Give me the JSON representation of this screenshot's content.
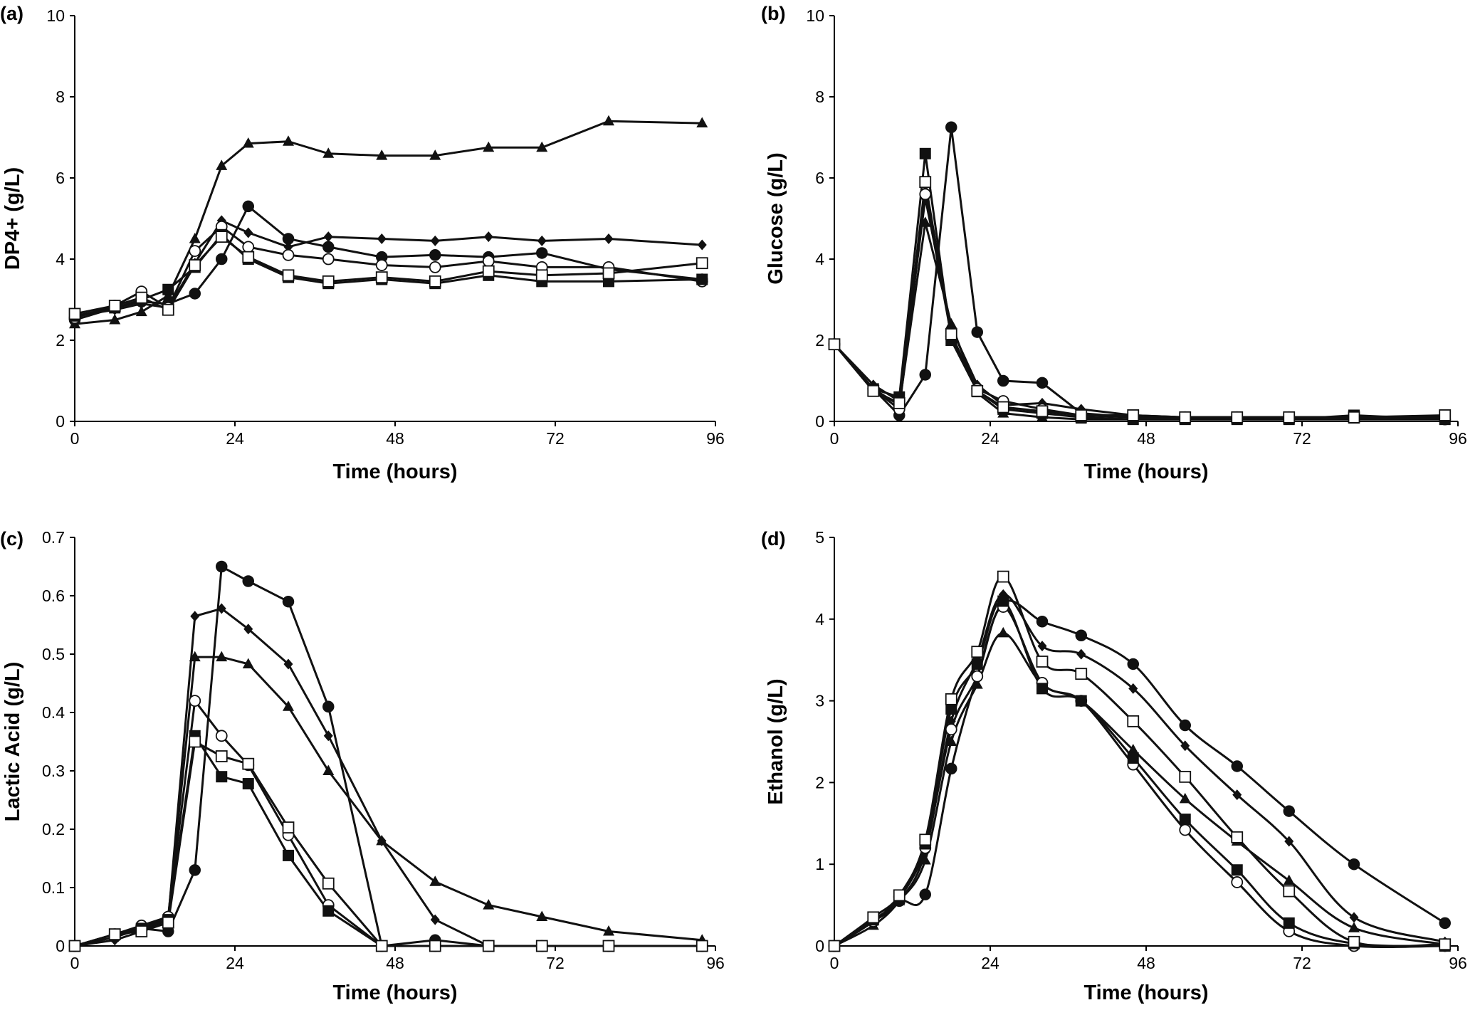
{
  "chart_data": [
    {
      "panel": "(a)",
      "type": "line",
      "xlabel": "Time (hours)",
      "ylabel": "DP4+ (g/L)",
      "xlim": [
        0,
        96
      ],
      "ylim": [
        0,
        10
      ],
      "xticks": [
        0,
        24,
        48,
        72,
        96
      ],
      "yticks": [
        0,
        2,
        4,
        6,
        8,
        10
      ],
      "smooth": false,
      "series": [
        {
          "marker": "circle-filled",
          "x": [
            0,
            6,
            10,
            14,
            18,
            22,
            26,
            32,
            38,
            46,
            54,
            62,
            70,
            80,
            94
          ],
          "y": [
            2.5,
            2.8,
            2.95,
            2.9,
            3.15,
            4.0,
            5.3,
            4.5,
            4.3,
            4.05,
            4.1,
            4.05,
            4.15,
            3.75,
            3.5
          ]
        },
        {
          "marker": "diamond-filled",
          "x": [
            0,
            6,
            10,
            14,
            18,
            22,
            26,
            32,
            38,
            46,
            54,
            62,
            70,
            80,
            94
          ],
          "y": [
            2.6,
            2.75,
            2.9,
            2.8,
            3.9,
            4.95,
            4.65,
            4.3,
            4.55,
            4.5,
            4.45,
            4.55,
            4.45,
            4.5,
            4.35
          ]
        },
        {
          "marker": "triangle-filled",
          "x": [
            0,
            6,
            10,
            14,
            18,
            22,
            26,
            32,
            38,
            46,
            54,
            62,
            70,
            80,
            94
          ],
          "y": [
            2.4,
            2.5,
            2.7,
            3.1,
            4.5,
            6.3,
            6.85,
            6.9,
            6.6,
            6.55,
            6.55,
            6.75,
            6.75,
            7.4,
            7.35
          ]
        },
        {
          "marker": "circle-open",
          "x": [
            0,
            6,
            10,
            14,
            18,
            22,
            26,
            32,
            38,
            46,
            54,
            62,
            70,
            80,
            94
          ],
          "y": [
            2.55,
            2.85,
            3.2,
            2.8,
            4.2,
            4.8,
            4.3,
            4.1,
            4.0,
            3.85,
            3.8,
            3.95,
            3.8,
            3.8,
            3.45
          ]
        },
        {
          "marker": "square-filled",
          "x": [
            0,
            6,
            10,
            14,
            18,
            22,
            26,
            32,
            38,
            46,
            54,
            62,
            70,
            80,
            94
          ],
          "y": [
            2.6,
            2.8,
            3.0,
            3.25,
            3.8,
            4.6,
            4.0,
            3.55,
            3.4,
            3.5,
            3.4,
            3.6,
            3.45,
            3.45,
            3.5
          ]
        },
        {
          "marker": "square-open",
          "x": [
            0,
            6,
            10,
            14,
            18,
            22,
            26,
            32,
            38,
            46,
            54,
            62,
            70,
            80,
            94
          ],
          "y": [
            2.65,
            2.85,
            3.05,
            2.75,
            3.85,
            4.55,
            4.05,
            3.6,
            3.45,
            3.55,
            3.45,
            3.7,
            3.6,
            3.65,
            3.9
          ]
        }
      ]
    },
    {
      "panel": "(b)",
      "type": "line",
      "xlabel": "Time  (hours)",
      "ylabel": "Glucose  (g/L)",
      "xlim": [
        0,
        96
      ],
      "ylim": [
        0,
        10
      ],
      "xticks": [
        0,
        24,
        48,
        72,
        96
      ],
      "yticks": [
        0,
        2,
        4,
        6,
        8,
        10
      ],
      "smooth": false,
      "series": [
        {
          "marker": "circle-filled",
          "x": [
            0,
            6,
            10,
            14,
            18,
            22,
            26,
            32,
            38,
            46,
            54,
            62,
            70,
            80,
            94
          ],
          "y": [
            1.9,
            0.8,
            0.15,
            1.15,
            7.25,
            2.2,
            1.0,
            0.95,
            0.2,
            0.1,
            0.1,
            0.1,
            0.1,
            0.1,
            0.05
          ]
        },
        {
          "marker": "diamond-filled",
          "x": [
            0,
            6,
            10,
            14,
            18,
            22,
            26,
            32,
            38,
            46,
            54,
            62,
            70,
            80,
            94
          ],
          "y": [
            1.9,
            0.9,
            0.5,
            5.5,
            2.3,
            0.9,
            0.4,
            0.45,
            0.3,
            0.15,
            0.1,
            0.1,
            0.1,
            0.1,
            0.1
          ]
        },
        {
          "marker": "triangle-filled",
          "x": [
            0,
            6,
            10,
            14,
            18,
            22,
            26,
            32,
            38,
            46,
            54,
            62,
            70,
            80,
            94
          ],
          "y": [
            1.9,
            0.8,
            0.4,
            4.9,
            2.4,
            0.7,
            0.2,
            0.1,
            0.05,
            0.05,
            0.05,
            0.05,
            0.05,
            0.05,
            0.05
          ]
        },
        {
          "marker": "circle-open",
          "x": [
            0,
            6,
            10,
            14,
            18,
            22,
            26,
            32,
            38,
            46,
            54,
            62,
            70,
            80,
            94
          ],
          "y": [
            1.9,
            0.8,
            0.3,
            5.6,
            2.1,
            0.8,
            0.5,
            0.3,
            0.15,
            0.1,
            0.1,
            0.1,
            0.1,
            0.1,
            0.05
          ]
        },
        {
          "marker": "square-filled",
          "x": [
            0,
            6,
            10,
            14,
            18,
            22,
            26,
            32,
            38,
            46,
            54,
            62,
            70,
            80,
            94
          ],
          "y": [
            1.9,
            0.8,
            0.6,
            6.6,
            2.0,
            0.75,
            0.3,
            0.2,
            0.1,
            0.05,
            0.05,
            0.05,
            0.05,
            0.15,
            0.05
          ]
        },
        {
          "marker": "square-open",
          "x": [
            0,
            6,
            10,
            14,
            18,
            22,
            26,
            32,
            38,
            46,
            54,
            62,
            70,
            80,
            94
          ],
          "y": [
            1.9,
            0.75,
            0.45,
            5.9,
            2.15,
            0.75,
            0.35,
            0.25,
            0.15,
            0.15,
            0.1,
            0.1,
            0.1,
            0.1,
            0.15
          ]
        }
      ]
    },
    {
      "panel": "(c)",
      "type": "line",
      "xlabel": "Time (hours)",
      "ylabel": "Lactic Acid (g/L)",
      "xlim": [
        0,
        96
      ],
      "ylim": [
        0,
        0.7
      ],
      "xticks": [
        0,
        24,
        48,
        72,
        96
      ],
      "yticks": [
        0,
        0.1,
        0.2,
        0.3,
        0.4,
        0.5,
        0.6,
        0.7
      ],
      "smooth": false,
      "series": [
        {
          "marker": "circle-filled",
          "x": [
            0,
            6,
            10,
            14,
            18,
            22,
            26,
            32,
            38,
            46,
            54,
            62,
            70,
            80,
            94
          ],
          "y": [
            0,
            0.015,
            0.03,
            0.025,
            0.13,
            0.65,
            0.625,
            0.59,
            0.41,
            0,
            0.01,
            0,
            0,
            0,
            0
          ]
        },
        {
          "marker": "diamond-filled",
          "x": [
            0,
            6,
            10,
            14,
            18,
            22,
            26,
            32,
            38,
            46,
            54,
            62,
            70,
            80,
            94
          ],
          "y": [
            0,
            0.01,
            0.025,
            0.045,
            0.565,
            0.578,
            0.543,
            0.483,
            0.36,
            0.18,
            0.045,
            0,
            0,
            0,
            0
          ]
        },
        {
          "marker": "triangle-filled",
          "x": [
            0,
            6,
            10,
            14,
            18,
            22,
            26,
            32,
            38,
            46,
            54,
            62,
            70,
            80,
            94
          ],
          "y": [
            0,
            0.02,
            0.03,
            0.05,
            0.495,
            0.495,
            0.483,
            0.41,
            0.3,
            0.18,
            0.11,
            0.07,
            0.05,
            0.025,
            0.01
          ]
        },
        {
          "marker": "circle-open",
          "x": [
            0,
            6,
            10,
            14,
            18,
            22,
            26,
            32,
            38,
            46,
            54,
            62,
            70,
            80,
            94
          ],
          "y": [
            0,
            0.02,
            0.035,
            0.05,
            0.42,
            0.36,
            0.31,
            0.19,
            0.07,
            0,
            0,
            0,
            0,
            0,
            0
          ]
        },
        {
          "marker": "square-filled",
          "x": [
            0,
            6,
            10,
            14,
            18,
            22,
            26,
            32,
            38,
            46,
            54,
            62,
            70,
            80,
            94
          ],
          "y": [
            0,
            0.02,
            0.03,
            0.045,
            0.36,
            0.29,
            0.278,
            0.155,
            0.06,
            0,
            0,
            0,
            0,
            0,
            0
          ]
        },
        {
          "marker": "square-open",
          "x": [
            0,
            6,
            10,
            14,
            18,
            22,
            26,
            32,
            38,
            46,
            54,
            62,
            70,
            80,
            94
          ],
          "y": [
            0,
            0.02,
            0.025,
            0.04,
            0.35,
            0.325,
            0.312,
            0.203,
            0.107,
            0,
            0,
            0,
            0,
            0,
            0
          ]
        }
      ]
    },
    {
      "panel": "(d)",
      "type": "line",
      "xlabel": "Time (hours)",
      "ylabel": "Ethanol  (g/L)",
      "xlim": [
        0,
        96
      ],
      "ylim": [
        0,
        5
      ],
      "xticks": [
        0,
        24,
        48,
        72,
        96
      ],
      "yticks": [
        0,
        1,
        2,
        3,
        4,
        5
      ],
      "smooth": true,
      "series": [
        {
          "marker": "circle-filled",
          "x": [
            0,
            6,
            10,
            14,
            18,
            22,
            26,
            32,
            38,
            46,
            54,
            62,
            70,
            80,
            94
          ],
          "y": [
            0,
            0.3,
            0.55,
            0.63,
            2.17,
            3.3,
            4.2,
            3.97,
            3.8,
            3.45,
            2.7,
            2.2,
            1.65,
            1.0,
            0.28
          ]
        },
        {
          "marker": "diamond-filled",
          "x": [
            0,
            6,
            10,
            14,
            18,
            22,
            26,
            32,
            38,
            46,
            54,
            62,
            70,
            80,
            94
          ],
          "y": [
            0,
            0.3,
            0.55,
            1.15,
            2.75,
            3.5,
            4.3,
            3.67,
            3.57,
            3.15,
            2.45,
            1.85,
            1.28,
            0.35,
            0.05
          ]
        },
        {
          "marker": "triangle-filled",
          "x": [
            0,
            6,
            10,
            14,
            18,
            22,
            26,
            32,
            38,
            46,
            54,
            62,
            70,
            80,
            94
          ],
          "y": [
            0,
            0.25,
            0.55,
            1.05,
            2.5,
            3.2,
            3.83,
            3.2,
            3.0,
            2.4,
            1.8,
            1.28,
            0.8,
            0.22,
            0.02
          ]
        },
        {
          "marker": "circle-open",
          "x": [
            0,
            6,
            10,
            14,
            18,
            22,
            26,
            32,
            38,
            46,
            54,
            62,
            70,
            80,
            94
          ],
          "y": [
            0,
            0.3,
            0.6,
            1.2,
            2.65,
            3.3,
            4.15,
            3.22,
            3.0,
            2.22,
            1.42,
            0.78,
            0.18,
            0,
            0
          ]
        },
        {
          "marker": "square-filled",
          "x": [
            0,
            6,
            10,
            14,
            18,
            22,
            26,
            32,
            38,
            46,
            54,
            62,
            70,
            80,
            94
          ],
          "y": [
            0,
            0.32,
            0.58,
            1.25,
            2.9,
            3.45,
            4.22,
            3.15,
            3.0,
            2.3,
            1.55,
            0.93,
            0.28,
            0.03,
            0
          ]
        },
        {
          "marker": "square-open",
          "x": [
            0,
            6,
            10,
            14,
            18,
            22,
            26,
            32,
            38,
            46,
            54,
            62,
            70,
            80,
            94
          ],
          "y": [
            0,
            0.35,
            0.62,
            1.3,
            3.02,
            3.6,
            4.52,
            3.48,
            3.33,
            2.75,
            2.07,
            1.33,
            0.67,
            0.05,
            0.02
          ]
        }
      ]
    }
  ]
}
